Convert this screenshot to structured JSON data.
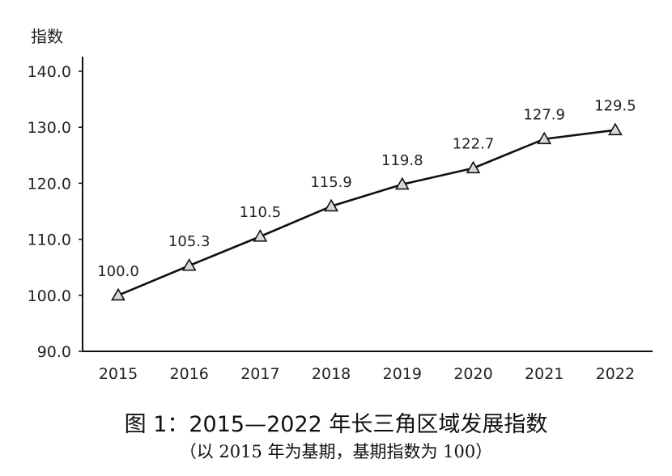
{
  "chart_data": {
    "type": "line",
    "title": "图 1：2015—2022 年长三角区域发展指数",
    "subtitle": "（以 2015 年为基期，基期指数为 100）",
    "ylabel": "指数",
    "xlabel": "",
    "categories": [
      "2015",
      "2016",
      "2017",
      "2018",
      "2019",
      "2020",
      "2021",
      "2022"
    ],
    "series": [
      {
        "values": [
          100.0,
          105.3,
          110.5,
          115.9,
          119.8,
          122.7,
          127.9,
          129.5
        ]
      }
    ],
    "data_labels": [
      "100.0",
      "105.3",
      "110.5",
      "115.9",
      "119.8",
      "122.7",
      "127.9",
      "129.5"
    ],
    "ylim": [
      90,
      140
    ],
    "yticks": [
      "90.0",
      "100.0",
      "110.0",
      "120.0",
      "130.0",
      "140.0"
    ],
    "marker": "triangle",
    "grid": false,
    "line_color": "#111111",
    "marker_fill": "#d9d9d9"
  }
}
